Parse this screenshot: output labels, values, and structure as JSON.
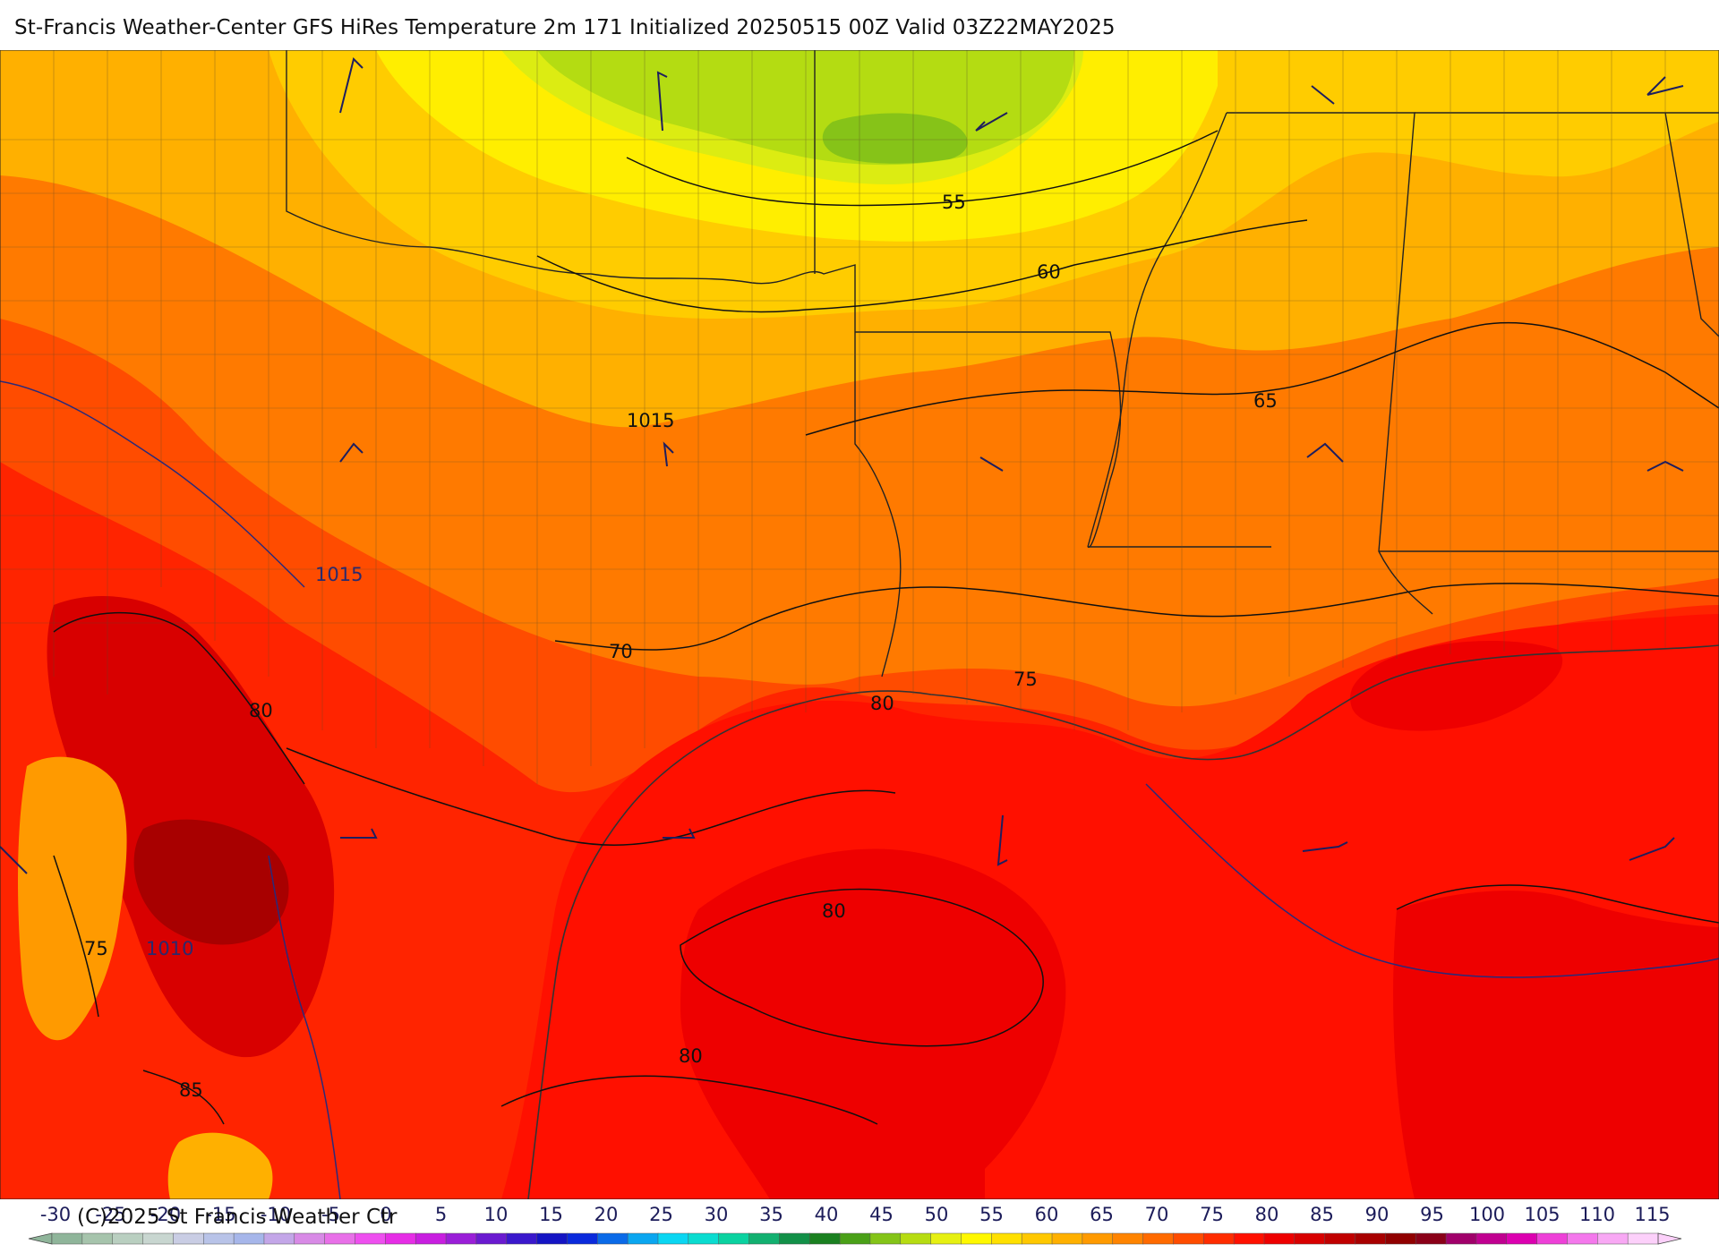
{
  "title": "St-Francis Weather-Center GFS HiRes Temperature 2m  171 Initialized 20250515 00Z Valid 03Z22MAY2025",
  "copyright": "(C)2025 St Francis Weather Ctr",
  "temperature_contour_labels": [
    "55",
    "60",
    "65",
    "70",
    "75",
    "80",
    "80",
    "80",
    "80",
    "75",
    "85"
  ],
  "pressure_contour_labels": [
    "1015",
    "1015",
    "1010"
  ],
  "colorbar": {
    "ticks": [
      "-30",
      "-25",
      "-20",
      "-15",
      "-10",
      "-5",
      "0",
      "5",
      "10",
      "15",
      "20",
      "25",
      "30",
      "35",
      "40",
      "45",
      "50",
      "55",
      "60",
      "65",
      "70",
      "75",
      "80",
      "85",
      "90",
      "95",
      "100",
      "105",
      "110",
      "115"
    ],
    "colors": [
      "#8fb59a",
      "#a6c4ac",
      "#b9cfc0",
      "#c8d6d0",
      "#c9cde4",
      "#b8c3e8",
      "#a6b6ea",
      "#c3a6e8",
      "#d88ae6",
      "#e870e8",
      "#ee4fef",
      "#e62de6",
      "#c81ee0",
      "#9a1ed8",
      "#6a1ad0",
      "#3a18cc",
      "#1414c4",
      "#0a2adc",
      "#0a6ae8",
      "#0aa6f0",
      "#0ad6f2",
      "#0adcd0",
      "#0ad2a0",
      "#12b070",
      "#129048",
      "#1a8020",
      "#4aa018",
      "#84c418",
      "#b6dc12",
      "#e6f012",
      "#fff800",
      "#ffe000",
      "#ffc800",
      "#ffb000",
      "#ff9a00",
      "#ff8400",
      "#ff6a00",
      "#ff4c00",
      "#ff2c00",
      "#ff1000",
      "#ee0000",
      "#d80000",
      "#c00000",
      "#a80000",
      "#900000",
      "#8a0018",
      "#a0006a",
      "#c00090",
      "#dc00b0",
      "#ee40d8",
      "#f478ec",
      "#f8a8f4",
      "#fcd0fa"
    ]
  }
}
